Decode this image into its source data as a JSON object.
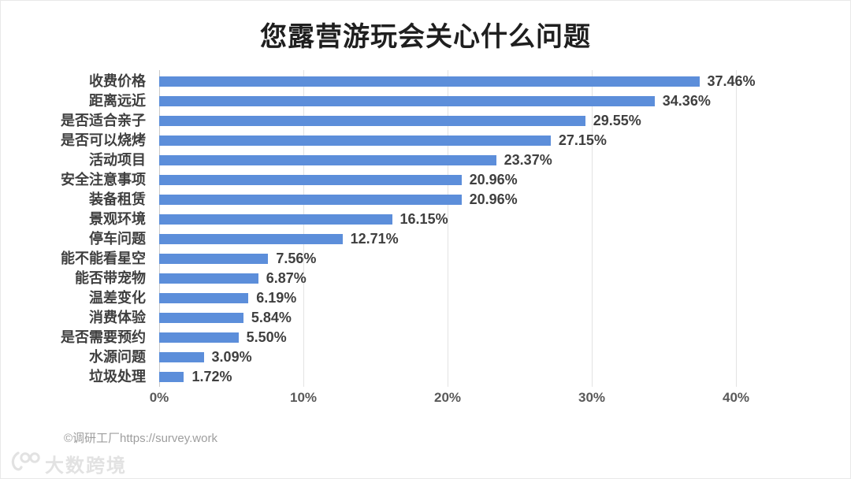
{
  "page": {
    "background": "#ffffff",
    "border_color": "#e9e9e9"
  },
  "chart_data": {
    "type": "bar",
    "orientation": "horizontal",
    "title": "您露营游玩会关心什么问题",
    "categories": [
      "收费价格",
      "距离远近",
      "是否适合亲子",
      "是否可以烧烤",
      "活动项目",
      "安全注意事项",
      "装备租赁",
      "景观环境",
      "停车问题",
      "能不能看星空",
      "能否带宠物",
      "温差变化",
      "消费体验",
      "是否需要预约",
      "水源问题",
      "垃圾处理"
    ],
    "values": [
      37.46,
      34.36,
      29.55,
      27.15,
      23.37,
      20.96,
      20.96,
      16.15,
      12.71,
      7.56,
      6.87,
      6.19,
      5.84,
      5.5,
      3.09,
      1.72
    ],
    "value_labels": [
      "37.46%",
      "34.36%",
      "29.55%",
      "27.15%",
      "23.37%",
      "20.96%",
      "20.96%",
      "16.15%",
      "12.71%",
      "7.56%",
      "6.87%",
      "6.19%",
      "5.84%",
      "5.50%",
      "3.09%",
      "1.72%"
    ],
    "xlabel": "",
    "ylabel": "",
    "xlim": [
      0,
      40
    ],
    "x_ticks": [
      "0%",
      "10%",
      "20%",
      "30%",
      "40%"
    ],
    "x_tick_values": [
      0,
      10,
      20,
      30,
      40
    ],
    "bar_color": "#5c8eda",
    "grid": true,
    "legend": false
  },
  "footer": {
    "credit": "©调研工厂https://survey.work"
  },
  "watermark": {
    "icon": "100-logo-icon",
    "text": "大数跨境"
  }
}
